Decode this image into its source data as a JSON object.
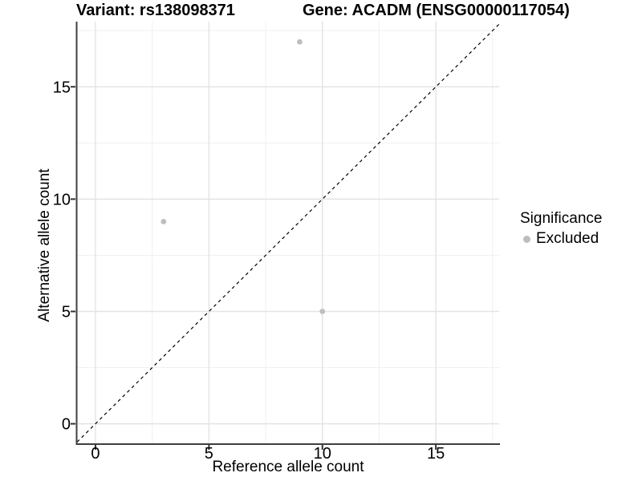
{
  "chart_data": {
    "type": "scatter",
    "title_left": "Variant: rs138098371",
    "title_right": "Gene: ACADM (ENSG00000117054)",
    "xlabel": "Reference allele count",
    "ylabel": "Alternative allele count",
    "xlim": [
      -0.813,
      17.79
    ],
    "ylim": [
      -0.87,
      17.9
    ],
    "x_ticks": [
      0,
      5,
      10,
      15
    ],
    "y_ticks": [
      0,
      5,
      10,
      15
    ],
    "x_minor_ticks": [
      2.5,
      7.5,
      12.5,
      17.5
    ],
    "y_minor_ticks": [
      2.5,
      7.5,
      12.5,
      17.5
    ],
    "grid": true,
    "series": [
      {
        "name": "Excluded",
        "color": "#bebebe",
        "points": [
          [
            9,
            17
          ],
          [
            3,
            9
          ],
          [
            10,
            5
          ]
        ]
      }
    ],
    "abline": {
      "slope": 1,
      "intercept": 0,
      "style": "dashed",
      "color": "#000000"
    },
    "legend": {
      "position": "right",
      "title": "Significance",
      "items": [
        {
          "label": "Excluded",
          "color": "#bdbdbd"
        }
      ]
    },
    "colors": {
      "background": "#ffffff",
      "grid_major": "#e3e3e3",
      "grid_minor": "#f0f0f0",
      "axis_line": "#3f3f3f",
      "tick_mark": "#333333",
      "text": "#000000",
      "point": "#bebebe"
    }
  }
}
